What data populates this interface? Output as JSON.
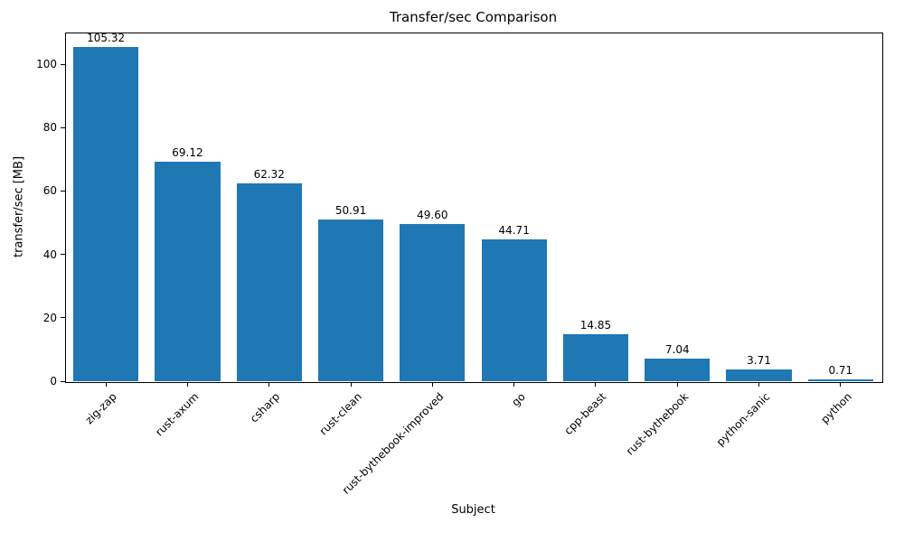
{
  "chart_data": {
    "type": "bar",
    "title": "Transfer/sec Comparison",
    "xlabel": "Subject",
    "ylabel": "transfer/sec [MB]",
    "categories": [
      "zig-zap",
      "rust-axum",
      "csharp",
      "rust-clean",
      "rust-bythebook-improved",
      "go",
      "cpp-beast",
      "rust-bythebook",
      "python-sanic",
      "python"
    ],
    "values": [
      105.32,
      69.12,
      62.32,
      50.91,
      49.6,
      44.71,
      14.85,
      7.04,
      3.71,
      0.71
    ],
    "value_labels": [
      "105.32",
      "69.12",
      "62.32",
      "50.91",
      "49.60",
      "44.71",
      "14.85",
      "7.04",
      "3.71",
      "0.71"
    ],
    "yticks": [
      0,
      20,
      40,
      60,
      80,
      100
    ],
    "ylim": [
      0,
      110
    ],
    "bar_color": "#1f77b4",
    "grid": false,
    "legend_position": "none"
  }
}
